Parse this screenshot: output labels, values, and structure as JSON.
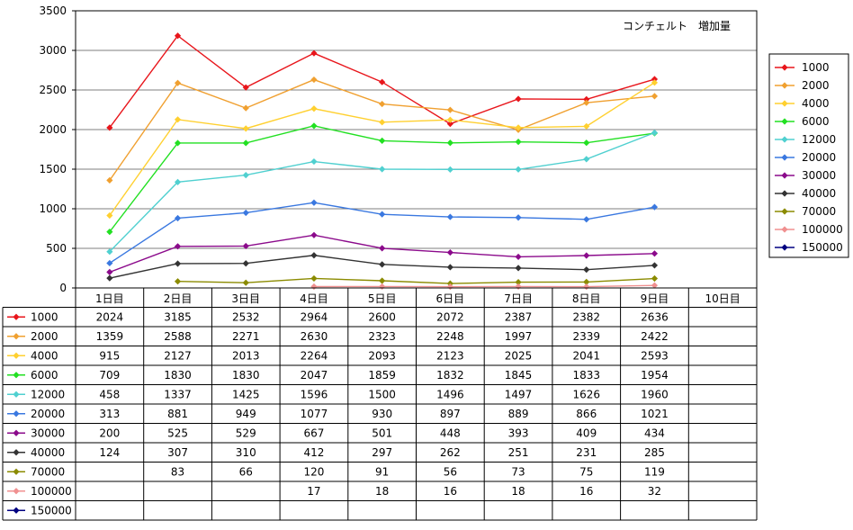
{
  "chart_data": {
    "type": "line",
    "title": "コンチェルト　増加量",
    "ylim": [
      0,
      3500
    ],
    "yticks": [
      0,
      500,
      1000,
      1500,
      2000,
      2500,
      3000,
      3500
    ],
    "categories": [
      "1日目",
      "2日目",
      "3日目",
      "4日目",
      "5日目",
      "6日目",
      "7日目",
      "8日目",
      "9日目",
      "10日目"
    ],
    "grid": true,
    "legend_position": "right",
    "data_table": true,
    "series": [
      {
        "name": "1000",
        "color": "#E8151B",
        "values": [
          2024,
          3185,
          2532,
          2964,
          2600,
          2072,
          2387,
          2382,
          2636,
          null
        ]
      },
      {
        "name": "2000",
        "color": "#F0A030",
        "values": [
          1359,
          2588,
          2271,
          2630,
          2323,
          2248,
          1997,
          2339,
          2422,
          null
        ]
      },
      {
        "name": "4000",
        "color": "#FFD030",
        "values": [
          915,
          2127,
          2013,
          2264,
          2093,
          2123,
          2025,
          2041,
          2593,
          null
        ]
      },
      {
        "name": "6000",
        "color": "#22E022",
        "values": [
          709,
          1830,
          1830,
          2047,
          1859,
          1832,
          1845,
          1833,
          1954,
          null
        ]
      },
      {
        "name": "12000",
        "color": "#50D0D0",
        "values": [
          458,
          1337,
          1425,
          1596,
          1500,
          1496,
          1497,
          1626,
          1960,
          null
        ]
      },
      {
        "name": "20000",
        "color": "#3A78E0",
        "values": [
          313,
          881,
          949,
          1077,
          930,
          897,
          889,
          866,
          1021,
          null
        ]
      },
      {
        "name": "30000",
        "color": "#8B0A8B",
        "values": [
          200,
          525,
          529,
          667,
          501,
          448,
          393,
          409,
          434,
          null
        ]
      },
      {
        "name": "40000",
        "color": "#333333",
        "values": [
          124,
          307,
          310,
          412,
          297,
          262,
          251,
          231,
          285,
          null
        ]
      },
      {
        "name": "70000",
        "color": "#8B8B00",
        "values": [
          null,
          83,
          66,
          120,
          91,
          56,
          73,
          75,
          119,
          null
        ]
      },
      {
        "name": "100000",
        "color": "#F09090",
        "values": [
          null,
          null,
          null,
          17,
          18,
          16,
          18,
          16,
          32,
          null
        ]
      },
      {
        "name": "150000",
        "color": "#000080",
        "values": [
          null,
          null,
          null,
          null,
          null,
          null,
          null,
          null,
          null,
          null
        ]
      }
    ]
  }
}
